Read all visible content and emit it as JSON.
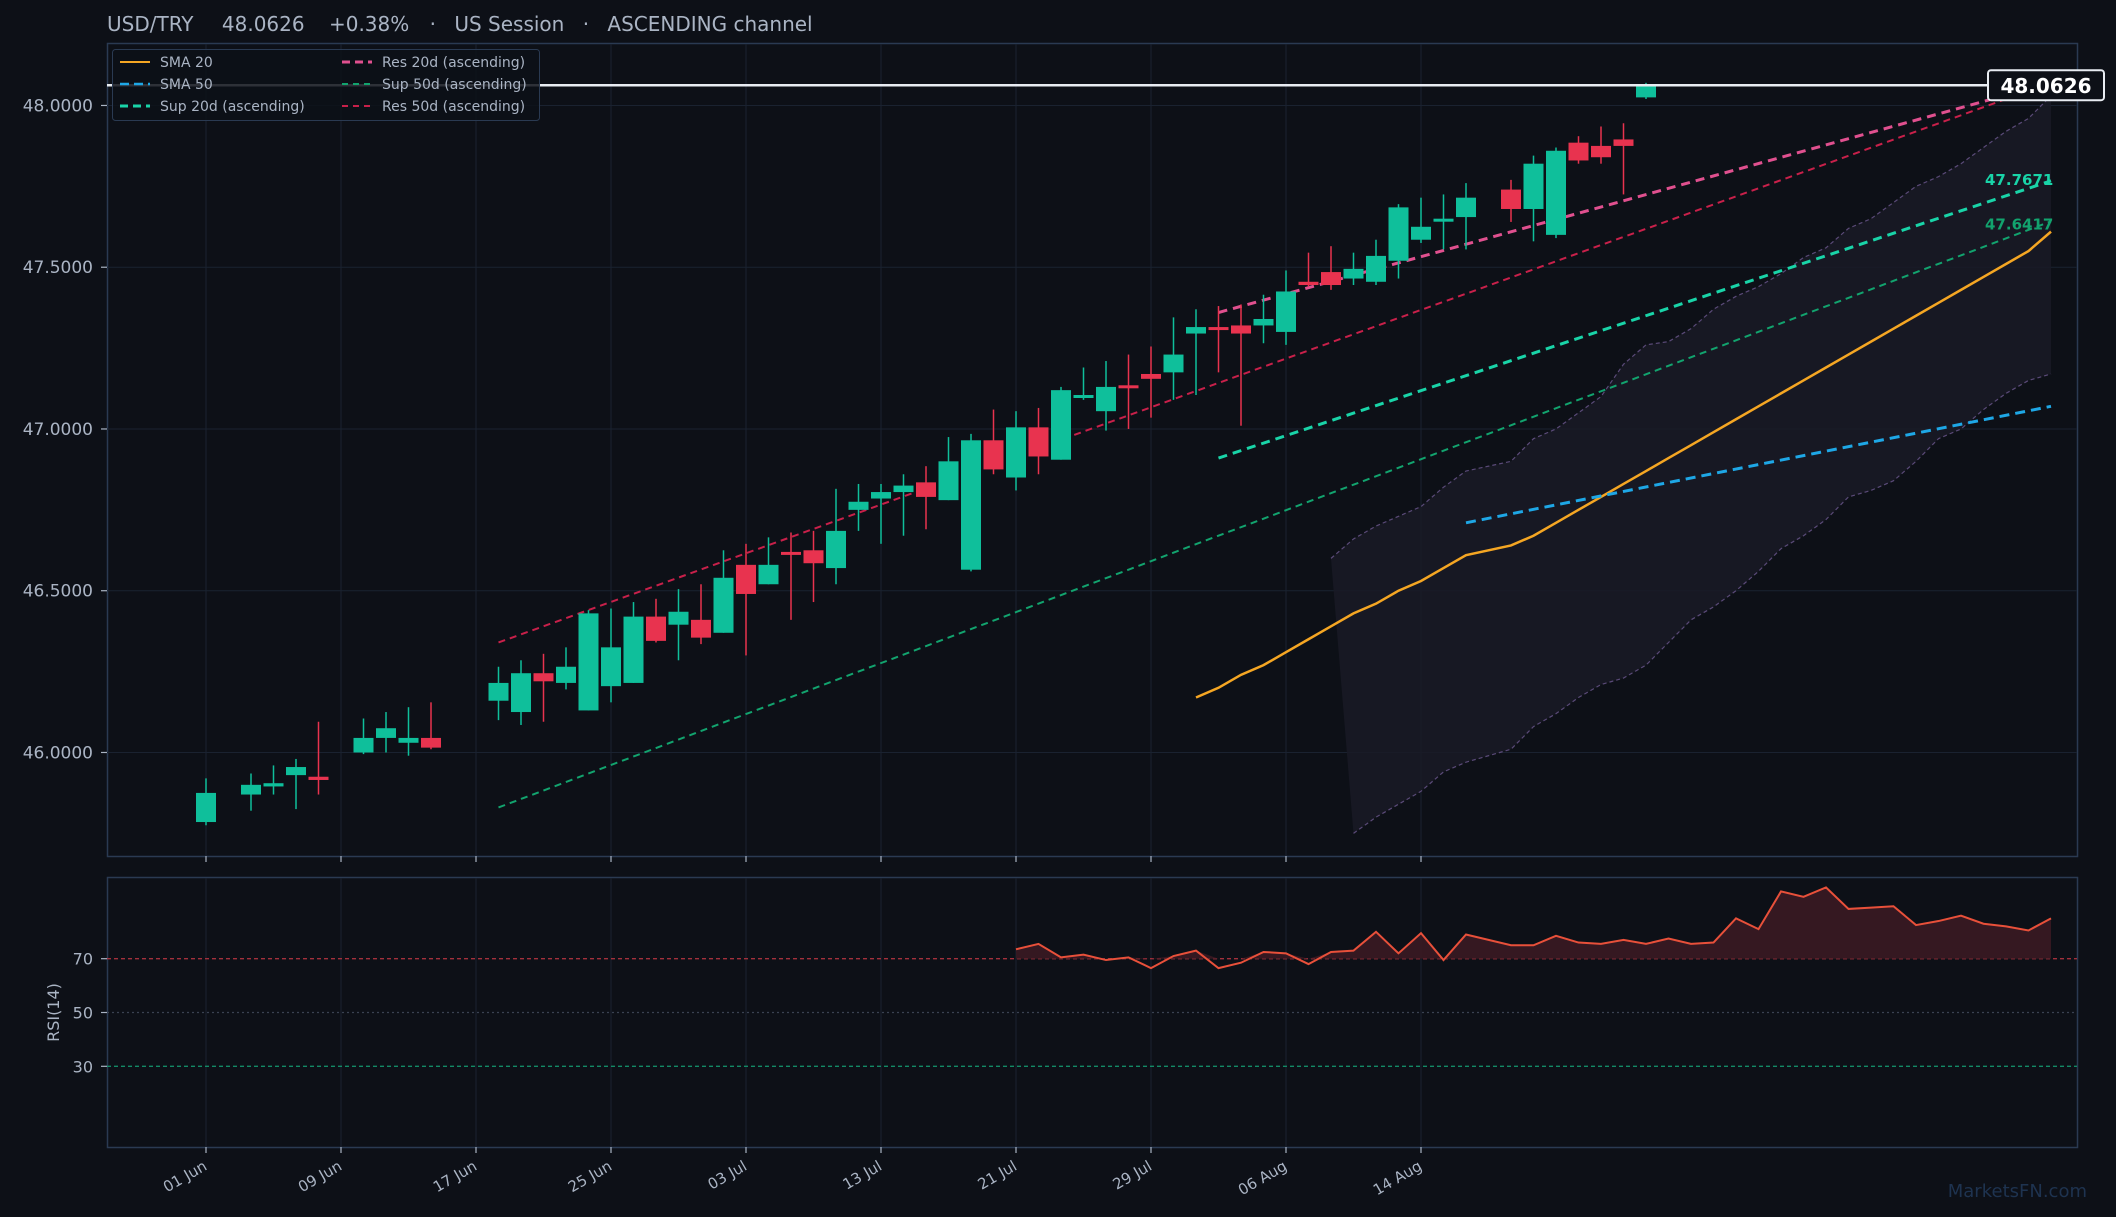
{
  "header": {
    "symbol": "USD/TRY",
    "price": "48.0626",
    "change": "+0.38%",
    "session": "US Session",
    "pattern": "ASCENDING channel",
    "separator": "·"
  },
  "watermark": "MarketsFN.com",
  "colors": {
    "background": "#0d1017",
    "panel_border": "#2a3a52",
    "up": "#0fbf9b",
    "down": "#e8334f",
    "sma20": "#f5a623",
    "sma50": "#1ea7e6",
    "sup20": "#19d4a8",
    "sup50": "#12a36e",
    "res20": "#e0508f",
    "res50": "#c8204a",
    "rsi_line": "#e8503a",
    "text": "#aab4c4"
  },
  "chart_data": [
    {
      "type": "candlestick",
      "title": "USD/TRY   48.0626   +0.38%  ·  US Session  ·  ASCENDING channel",
      "xlabel": "",
      "ylabel": "",
      "x_ticks": [
        "01 Jun",
        "09 Jun",
        "17 Jun",
        "25 Jun",
        "03 Jul",
        "13 Jul",
        "21 Jul",
        "29 Jul",
        "06 Aug",
        "14 Aug"
      ],
      "y_ticks": [
        "46.0000",
        "46.5000",
        "47.0000",
        "47.5000",
        "48.0000"
      ],
      "ylim": [
        45.68,
        48.19
      ],
      "grid": true,
      "legend_placement": "top-left",
      "dates": [
        "2024-06-01",
        "2024-06-02",
        "2024-06-03",
        "2024-06-04",
        "2024-06-05",
        "2024-06-06",
        "2024-06-08",
        "2024-06-09",
        "2024-06-10",
        "2024-06-11",
        "2024-06-12",
        "2024-06-14",
        "2024-06-15",
        "2024-06-16",
        "2024-06-17",
        "2024-06-18",
        "2024-06-19",
        "2024-06-20",
        "2024-06-21",
        "2024-06-22",
        "2024-06-23",
        "2024-06-24",
        "2024-06-25",
        "2024-06-26",
        "2024-06-27",
        "2024-06-28",
        "2024-06-29",
        "2024-06-30",
        "2024-07-01",
        "2024-07-02",
        "2024-07-03",
        "2024-07-04",
        "2024-07-05",
        "2024-07-06",
        "2024-07-07",
        "2024-07-08",
        "2024-07-09",
        "2024-07-10",
        "2024-07-11",
        "2024-07-12",
        "2024-07-13",
        "2024-07-14",
        "2024-07-15",
        "2024-07-16",
        "2024-07-17",
        "2024-07-18",
        "2024-07-19",
        "2024-07-20",
        "2024-07-21",
        "2024-07-22",
        "2024-07-23",
        "2024-07-24",
        "2024-07-25",
        "2024-07-26",
        "2024-07-27",
        "2024-07-29",
        "2024-07-30",
        "2024-07-31",
        "2024-08-01",
        "2024-08-02",
        "2024-08-03",
        "2024-08-04",
        "2024-08-05",
        "2024-08-06",
        "2024-08-07",
        "2024-08-08",
        "2024-08-09",
        "2024-08-10",
        "2024-08-11",
        "2024-08-12",
        "2024-08-13",
        "2024-08-14",
        "2024-08-15",
        "2024-08-16",
        "2024-08-17",
        "2024-08-18",
        "2024-08-19",
        "2024-08-20",
        "2024-08-21",
        "2024-08-22"
      ],
      "candles": [
        {
          "date": "2024-06-01",
          "open": 45.785,
          "high": 45.92,
          "low": 45.775,
          "close": 45.875
        },
        {
          "date": "2024-06-03",
          "open": 45.87,
          "high": 45.935,
          "low": 45.82,
          "close": 45.9
        },
        {
          "date": "2024-06-04",
          "open": 45.895,
          "high": 45.96,
          "low": 45.87,
          "close": 45.905
        },
        {
          "date": "2024-06-05",
          "open": 45.93,
          "high": 45.98,
          "low": 45.825,
          "close": 45.955
        },
        {
          "date": "2024-06-06",
          "open": 45.925,
          "high": 46.095,
          "low": 45.87,
          "close": 45.915
        },
        {
          "date": "2024-06-08",
          "open": 46.0,
          "high": 46.105,
          "low": 45.995,
          "close": 46.045
        },
        {
          "date": "2024-06-09",
          "open": 46.045,
          "high": 46.125,
          "low": 46.0,
          "close": 46.075
        },
        {
          "date": "2024-06-10",
          "open": 46.03,
          "high": 46.14,
          "low": 45.99,
          "close": 46.045
        },
        {
          "date": "2024-06-11",
          "open": 46.045,
          "high": 46.155,
          "low": 46.01,
          "close": 46.015
        },
        {
          "date": "2024-06-14",
          "open": 46.16,
          "high": 46.265,
          "low": 46.1,
          "close": 46.215
        },
        {
          "date": "2024-06-15",
          "open": 46.125,
          "high": 46.285,
          "low": 46.085,
          "close": 46.245
        },
        {
          "date": "2024-06-16",
          "open": 46.245,
          "high": 46.305,
          "low": 46.095,
          "close": 46.22
        },
        {
          "date": "2024-06-17",
          "open": 46.215,
          "high": 46.325,
          "low": 46.195,
          "close": 46.265
        },
        {
          "date": "2024-06-18",
          "open": 46.13,
          "high": 46.44,
          "low": 46.13,
          "close": 46.43
        },
        {
          "date": "2024-06-19",
          "open": 46.205,
          "high": 46.445,
          "low": 46.155,
          "close": 46.325
        },
        {
          "date": "2024-06-20",
          "open": 46.215,
          "high": 46.465,
          "low": 46.215,
          "close": 46.42
        },
        {
          "date": "2024-06-21",
          "open": 46.42,
          "high": 46.475,
          "low": 46.34,
          "close": 46.345
        },
        {
          "date": "2024-06-22",
          "open": 46.395,
          "high": 46.505,
          "low": 46.285,
          "close": 46.435
        },
        {
          "date": "2024-06-23",
          "open": 46.41,
          "high": 46.52,
          "low": 46.335,
          "close": 46.355
        },
        {
          "date": "2024-06-24",
          "open": 46.37,
          "high": 46.625,
          "low": 46.37,
          "close": 46.54
        },
        {
          "date": "2024-06-25",
          "open": 46.58,
          "high": 46.645,
          "low": 46.3,
          "close": 46.49
        },
        {
          "date": "2024-06-26",
          "open": 46.52,
          "high": 46.665,
          "low": 46.52,
          "close": 46.58
        },
        {
          "date": "2024-06-27",
          "open": 46.62,
          "high": 46.68,
          "low": 46.41,
          "close": 46.615
        },
        {
          "date": "2024-06-28",
          "open": 46.625,
          "high": 46.685,
          "low": 46.465,
          "close": 46.585
        },
        {
          "date": "2024-06-29",
          "open": 46.57,
          "high": 46.815,
          "low": 46.52,
          "close": 46.685
        },
        {
          "date": "2024-06-30",
          "open": 46.75,
          "high": 46.83,
          "low": 46.685,
          "close": 46.775
        },
        {
          "date": "2024-07-01",
          "open": 46.785,
          "high": 46.83,
          "low": 46.645,
          "close": 46.805
        },
        {
          "date": "2024-07-02",
          "open": 46.805,
          "high": 46.86,
          "low": 46.67,
          "close": 46.825
        },
        {
          "date": "2024-07-03",
          "open": 46.835,
          "high": 46.885,
          "low": 46.69,
          "close": 46.79
        },
        {
          "date": "2024-07-04",
          "open": 46.78,
          "high": 46.975,
          "low": 46.78,
          "close": 46.9
        },
        {
          "date": "2024-07-05",
          "open": 46.565,
          "high": 46.985,
          "low": 46.56,
          "close": 46.965
        },
        {
          "date": "2024-07-06",
          "open": 46.965,
          "high": 47.06,
          "low": 46.86,
          "close": 46.875
        },
        {
          "date": "2024-07-07",
          "open": 46.85,
          "high": 47.055,
          "low": 46.81,
          "close": 47.005
        },
        {
          "date": "2024-07-08",
          "open": 47.005,
          "high": 47.065,
          "low": 46.86,
          "close": 46.915
        },
        {
          "date": "2024-07-09",
          "open": 46.905,
          "high": 47.13,
          "low": 46.905,
          "close": 47.12
        },
        {
          "date": "2024-07-10",
          "open": 47.1,
          "high": 47.19,
          "low": 47.09,
          "close": 47.105
        },
        {
          "date": "2024-07-11",
          "open": 47.055,
          "high": 47.21,
          "low": 46.995,
          "close": 47.13
        },
        {
          "date": "2024-07-12",
          "open": 47.135,
          "high": 47.23,
          "low": 47.0,
          "close": 47.13
        },
        {
          "date": "2024-07-13",
          "open": 47.17,
          "high": 47.255,
          "low": 47.035,
          "close": 47.155
        },
        {
          "date": "2024-07-14",
          "open": 47.175,
          "high": 47.345,
          "low": 47.09,
          "close": 47.23
        },
        {
          "date": "2024-07-15",
          "open": 47.295,
          "high": 47.37,
          "low": 47.105,
          "close": 47.315
        },
        {
          "date": "2024-07-16",
          "open": 47.315,
          "high": 47.38,
          "low": 47.175,
          "close": 47.31
        },
        {
          "date": "2024-07-17",
          "open": 47.32,
          "high": 47.385,
          "low": 47.01,
          "close": 47.295
        },
        {
          "date": "2024-07-18",
          "open": 47.32,
          "high": 47.415,
          "low": 47.265,
          "close": 47.34
        },
        {
          "date": "2024-07-19",
          "open": 47.3,
          "high": 47.49,
          "low": 47.26,
          "close": 47.425
        },
        {
          "date": "2024-07-20",
          "open": 47.455,
          "high": 47.545,
          "low": 47.44,
          "close": 47.445
        },
        {
          "date": "2024-07-21",
          "open": 47.485,
          "high": 47.565,
          "low": 47.43,
          "close": 47.445
        },
        {
          "date": "2024-07-22",
          "open": 47.465,
          "high": 47.545,
          "low": 47.445,
          "close": 47.495
        },
        {
          "date": "2024-07-23",
          "open": 47.455,
          "high": 47.585,
          "low": 47.445,
          "close": 47.535
        },
        {
          "date": "2024-07-24",
          "open": 47.52,
          "high": 47.695,
          "low": 47.465,
          "close": 47.685
        },
        {
          "date": "2024-07-25",
          "open": 47.585,
          "high": 47.715,
          "low": 47.575,
          "close": 47.625
        },
        {
          "date": "2024-07-26",
          "open": 47.645,
          "high": 47.725,
          "low": 47.555,
          "close": 47.65
        },
        {
          "date": "2024-07-27",
          "open": 47.655,
          "high": 47.76,
          "low": 47.555,
          "close": 47.715
        },
        {
          "date": "2024-07-29",
          "open": 47.74,
          "high": 47.77,
          "low": 47.64,
          "close": 47.68
        },
        {
          "date": "2024-07-30",
          "open": 47.68,
          "high": 47.845,
          "low": 47.58,
          "close": 47.82
        },
        {
          "date": "2024-07-31",
          "open": 47.6,
          "high": 47.87,
          "low": 47.59,
          "close": 47.86
        },
        {
          "date": "2024-08-01",
          "open": 47.885,
          "high": 47.905,
          "low": 47.82,
          "close": 47.83
        },
        {
          "date": "2024-08-02",
          "open": 47.875,
          "high": 47.935,
          "low": 47.82,
          "close": 47.84
        },
        {
          "date": "2024-08-03",
          "open": 47.895,
          "high": 47.945,
          "low": 47.725,
          "close": 47.875
        },
        {
          "date": "2024-08-04",
          "open": 48.025,
          "high": 48.07,
          "low": 48.02,
          "close": 48.0626
        }
      ],
      "sma20": [
        46.17,
        46.2,
        46.24,
        46.27,
        46.31,
        46.35,
        46.39,
        46.43,
        46.46,
        46.5,
        46.53,
        46.57,
        46.61,
        46.64,
        46.67,
        46.71,
        46.75,
        46.79,
        46.83,
        46.87,
        46.91,
        46.95,
        46.99,
        47.03,
        47.07,
        47.11,
        47.15,
        47.19,
        47.23,
        47.27,
        47.31,
        47.35,
        47.39,
        47.43,
        47.47,
        47.51,
        47.55,
        47.61
      ],
      "sma50": [
        46.71,
        47.07
      ],
      "bands_upper": [
        46.6,
        46.66,
        46.7,
        46.73,
        46.76,
        46.82,
        46.87,
        46.9,
        46.97,
        47.0,
        47.05,
        47.1,
        47.2,
        47.26,
        47.27,
        47.31,
        47.37,
        47.41,
        47.44,
        47.48,
        47.53,
        47.56,
        47.62,
        47.65,
        47.7,
        47.75,
        47.78,
        47.82,
        47.87,
        47.92,
        47.96,
        48.03
      ],
      "bands_lower": [
        45.75,
        45.8,
        45.84,
        45.88,
        45.94,
        45.97,
        46.01,
        46.08,
        46.12,
        46.17,
        46.21,
        46.23,
        46.27,
        46.34,
        46.41,
        46.45,
        46.5,
        46.56,
        46.63,
        46.67,
        46.72,
        46.79,
        46.81,
        46.84,
        46.9,
        46.97,
        47.0,
        47.06,
        47.11,
        47.15,
        47.17
      ],
      "sup20_start": 46.91,
      "sup20_end": 47.7671,
      "sup50_start": 45.83,
      "sup50_end": 47.6417,
      "res20_start": 47.36,
      "res20_end": 48.07,
      "res50_start": 46.34,
      "res50_end": 48.07,
      "price_line": 48.0626,
      "line_labels": [
        "48.0626",
        "47.7671",
        "47.6417"
      ],
      "legend": [
        "SMA 20",
        "SMA 50",
        "Sup 20d (ascending)",
        "Res 20d (ascending)",
        "Sup 50d (ascending)",
        "Res 50d (ascending)"
      ]
    },
    {
      "type": "line",
      "ylabel": "RSI(14)",
      "y_ticks": [
        "30",
        "50",
        "70"
      ],
      "ylim": [
        0,
        100
      ],
      "levels": [
        70,
        50,
        30
      ],
      "values": [
        73.5,
        75.5,
        70.5,
        71.5,
        69.5,
        70.5,
        66.5,
        71,
        73,
        66.5,
        68.5,
        72.5,
        72,
        68,
        72.5,
        73,
        80,
        72,
        79.5,
        69.5,
        79,
        75,
        75,
        78.5,
        76,
        75.5,
        77,
        75.5,
        77.5,
        75.5,
        76,
        85,
        81,
        95,
        93,
        96.5,
        88.5,
        89,
        89.5,
        82.5,
        84,
        86,
        83,
        82,
        80.5,
        85
      ]
    }
  ]
}
